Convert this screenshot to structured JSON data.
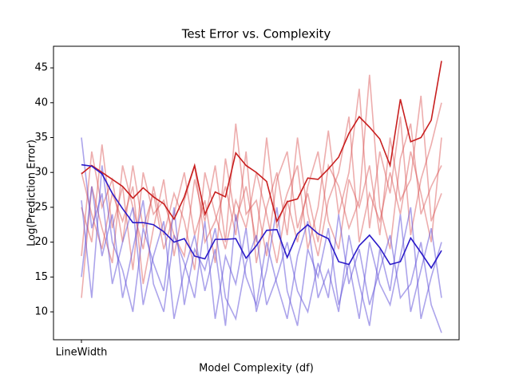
{
  "chart_data": {
    "type": "line",
    "title": "Test Error vs. Complexity",
    "xlabel": "Model Complexity (df)",
    "ylabel": "Log(Prediction Error)",
    "categories": [
      "LineWidth",
      null,
      null,
      null,
      null,
      null,
      null,
      null,
      null,
      null,
      null,
      null,
      null,
      null,
      null,
      null,
      null,
      null,
      null,
      null,
      null,
      null,
      null,
      null,
      null,
      null,
      null,
      null,
      null,
      null,
      null,
      null,
      null,
      null,
      null,
      null
    ],
    "ylim": [
      6,
      48.1
    ],
    "yticks": [
      10,
      15,
      20,
      25,
      30,
      35,
      40,
      45
    ],
    "series": [
      {
        "color": "#d84a4a",
        "alpha": 0.45,
        "values": [
          18,
          33,
          25,
          29,
          20,
          31,
          22,
          27,
          19,
          24,
          30,
          21,
          26,
          17,
          32,
          23,
          28,
          20,
          35,
          22,
          27,
          31,
          19,
          25,
          36,
          24,
          30,
          42,
          22,
          33,
          27,
          38,
          21,
          29,
          34,
          40
        ]
      },
      {
        "color": "#d84a4a",
        "alpha": 0.45,
        "values": [
          25,
          20,
          34,
          22,
          28,
          16,
          30,
          24,
          26,
          21,
          18,
          29,
          23,
          31,
          20,
          37,
          24,
          26,
          18,
          29,
          33,
          22,
          27,
          20,
          31,
          28,
          22,
          26,
          44,
          25,
          19,
          32,
          37,
          24,
          28,
          31
        ]
      },
      {
        "color": "#d84a4a",
        "alpha": 0.45,
        "values": [
          12,
          28,
          22,
          17,
          31,
          25,
          19,
          28,
          21,
          27,
          23,
          16,
          30,
          24,
          19,
          26,
          22,
          30,
          24,
          17,
          26,
          20,
          28,
          33,
          23,
          19,
          29,
          25,
          31,
          21,
          35,
          26,
          29,
          41,
          23,
          27
        ]
      },
      {
        "color": "#d84a4a",
        "alpha": 0.45,
        "values": [
          30,
          24,
          19,
          27,
          23,
          28,
          14,
          22,
          29,
          18,
          26,
          31,
          20,
          23,
          28,
          21,
          33,
          17,
          25,
          30,
          21,
          35,
          24,
          18,
          26,
          30,
          38,
          20,
          27,
          23,
          30,
          24,
          33,
          27,
          20,
          35
        ]
      },
      {
        "color": "#5a4ad8",
        "alpha": 0.5,
        "values": [
          35,
          22,
          27,
          14,
          20,
          25,
          11,
          18,
          23,
          9,
          16,
          21,
          13,
          19,
          8,
          24,
          15,
          11,
          20,
          14,
          9,
          18,
          23,
          12,
          16,
          10,
          21,
          14,
          8,
          19,
          13,
          24,
          10,
          16,
          22,
          12
        ]
      },
      {
        "color": "#5a4ad8",
        "alpha": 0.5,
        "values": [
          15,
          28,
          18,
          24,
          12,
          19,
          26,
          14,
          10,
          21,
          17,
          12,
          23,
          9,
          18,
          14,
          22,
          10,
          16,
          25,
          13,
          8,
          19,
          15,
          22,
          11,
          17,
          9,
          20,
          14,
          11,
          18,
          25,
          9,
          15,
          20
        ]
      },
      {
        "color": "#5a4ad8",
        "alpha": 0.5,
        "values": [
          26,
          12,
          31,
          20,
          16,
          10,
          22,
          17,
          13,
          25,
          11,
          19,
          16,
          22,
          12,
          9,
          17,
          21,
          11,
          15,
          20,
          13,
          10,
          17,
          12,
          24,
          14,
          19,
          11,
          16,
          21,
          12,
          14,
          20,
          11,
          7
        ]
      },
      {
        "color": "#c81e1e",
        "alpha": 1,
        "values": [
          29.8,
          31,
          30,
          29,
          28,
          26.3,
          27.8,
          26.5,
          25.5,
          23.3,
          26.5,
          31,
          24,
          27.2,
          26.5,
          32.8,
          31,
          30,
          28.7,
          23,
          25.8,
          26.2,
          29.2,
          29,
          30.5,
          32.2,
          35.6,
          38,
          36.5,
          34.8,
          31,
          40.5,
          34.4,
          35,
          37.5,
          46
        ]
      },
      {
        "color": "#2a1ac8",
        "alpha": 1,
        "values": [
          31.1,
          30.9,
          29.8,
          27,
          24.8,
          22.8,
          22.8,
          22.5,
          21.5,
          20,
          20.5,
          18,
          17.6,
          20.4,
          20.4,
          20.5,
          17.7,
          19.5,
          21.7,
          21.8,
          17.8,
          21.2,
          22.5,
          21.2,
          20.5,
          17.2,
          16.8,
          19.5,
          21,
          19.2,
          16.8,
          17.2,
          20.6,
          18.5,
          16.3,
          18.8
        ]
      }
    ]
  }
}
